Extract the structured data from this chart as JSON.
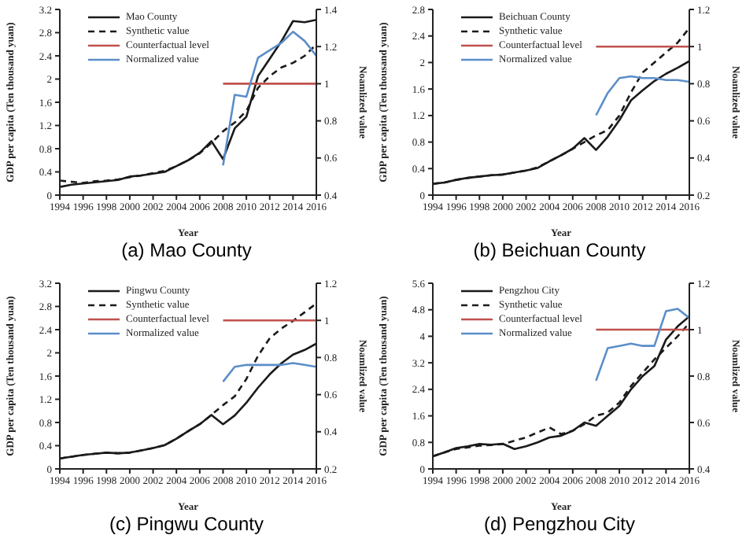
{
  "chart_data": [
    {
      "type": "line",
      "title": "(a) Mao County",
      "xlabel": "Year",
      "ylabel": "GDP per capita (Ten thousand yuan)",
      "y2label": "Noamlized value",
      "x": [
        1994,
        1995,
        1996,
        1997,
        1998,
        1999,
        2000,
        2001,
        2002,
        2003,
        2004,
        2005,
        2006,
        2007,
        2008,
        2009,
        2010,
        2011,
        2012,
        2013,
        2014,
        2015,
        2016
      ],
      "xlim": [
        1994,
        2016
      ],
      "xticks": [
        1994,
        1996,
        1998,
        2000,
        2002,
        2004,
        2006,
        2008,
        2010,
        2012,
        2014,
        2016
      ],
      "ylim": [
        0,
        3.2
      ],
      "yticks": [
        0,
        0.4,
        0.8,
        1.2,
        1.6,
        2,
        2.4,
        2.8,
        3.2
      ],
      "y2lim": [
        0.4,
        1.4
      ],
      "y2ticks": [
        0.4,
        0.6,
        0.8,
        1,
        1.2,
        1.4
      ],
      "legend": "top left",
      "marker": "none",
      "series": [
        {
          "name": "Mao County",
          "color": "#1a1a1a",
          "values": [
            0.14,
            0.18,
            0.2,
            0.22,
            0.24,
            0.26,
            0.32,
            0.34,
            0.37,
            0.4,
            0.5,
            0.6,
            0.73,
            0.93,
            0.62,
            1.15,
            1.35,
            2.05,
            2.35,
            2.65,
            3.0,
            2.98,
            3.02
          ]
        },
        {
          "name": "Synthetic value",
          "color": "#1a1a1a",
          "line_style": "dashed",
          "values": [
            0.25,
            0.23,
            0.21,
            0.24,
            0.25,
            0.27,
            0.31,
            0.34,
            0.38,
            0.42,
            0.5,
            0.6,
            0.72,
            0.9,
            1.1,
            1.25,
            1.45,
            1.85,
            2.05,
            2.2,
            2.28,
            2.4,
            2.6
          ]
        },
        {
          "name": "Counterfactual level",
          "color": "#c0504d",
          "axis": "y2",
          "x": [
            2008,
            2016
          ],
          "values": [
            1,
            1
          ]
        },
        {
          "name": "Normalized value",
          "color": "#5b8ec9",
          "axis": "y2",
          "x": [
            2008,
            2009,
            2010,
            2011,
            2012,
            2013,
            2014,
            2015,
            2016
          ],
          "values": [
            0.56,
            0.94,
            0.93,
            1.14,
            1.18,
            1.22,
            1.28,
            1.23,
            1.15
          ]
        }
      ]
    },
    {
      "type": "line",
      "title": "(b) Beichuan County",
      "xlabel": "Year",
      "ylabel": "GDP per capita (Ten thousand yuan)",
      "y2label": "Noamlized value",
      "x": [
        1994,
        1995,
        1996,
        1997,
        1998,
        1999,
        2000,
        2001,
        2002,
        2003,
        2004,
        2005,
        2006,
        2007,
        2008,
        2009,
        2010,
        2011,
        2012,
        2013,
        2014,
        2015,
        2016
      ],
      "xlim": [
        1994,
        2016
      ],
      "xticks": [
        1994,
        1996,
        1998,
        2000,
        2002,
        2004,
        2006,
        2008,
        2010,
        2012,
        2014,
        2016
      ],
      "ylim": [
        0,
        2.8
      ],
      "yticks": [
        0,
        0.4,
        0.8,
        1.2,
        1.6,
        2,
        2.4,
        2.8
      ],
      "y2lim": [
        0.2,
        1.2
      ],
      "y2ticks": [
        0.2,
        0.4,
        0.6,
        0.8,
        1,
        1.2
      ],
      "legend": "top left",
      "marker": "none",
      "series": [
        {
          "name": "Beichuan County",
          "color": "#1a1a1a",
          "values": [
            0.17,
            0.19,
            0.23,
            0.26,
            0.28,
            0.3,
            0.31,
            0.34,
            0.37,
            0.41,
            0.51,
            0.6,
            0.7,
            0.86,
            0.68,
            0.88,
            1.13,
            1.43,
            1.58,
            1.72,
            1.83,
            1.92,
            2.02
          ]
        },
        {
          "name": "Synthetic value",
          "color": "#1a1a1a",
          "line_style": "dashed",
          "values": [
            0.17,
            0.19,
            0.23,
            0.26,
            0.28,
            0.3,
            0.31,
            0.34,
            0.37,
            0.42,
            0.51,
            0.6,
            0.7,
            0.8,
            0.9,
            0.98,
            1.2,
            1.55,
            1.85,
            2.0,
            2.15,
            2.3,
            2.52
          ]
        },
        {
          "name": "Counterfactual level",
          "color": "#c0504d",
          "axis": "y2",
          "x": [
            2008,
            2016
          ],
          "values": [
            1,
            1
          ]
        },
        {
          "name": "Normalized value",
          "color": "#5b8ec9",
          "axis": "y2",
          "x": [
            2008,
            2009,
            2010,
            2011,
            2012,
            2013,
            2014,
            2015,
            2016
          ],
          "values": [
            0.63,
            0.75,
            0.83,
            0.84,
            0.83,
            0.83,
            0.82,
            0.82,
            0.81
          ]
        }
      ]
    },
    {
      "type": "line",
      "title": "(c) Pingwu County",
      "xlabel": "Year",
      "ylabel": "GDP per capita (Ten thousand yuan)",
      "y2label": "Noamlized value",
      "x": [
        1994,
        1995,
        1996,
        1997,
        1998,
        1999,
        2000,
        2001,
        2002,
        2003,
        2004,
        2005,
        2006,
        2007,
        2008,
        2009,
        2010,
        2011,
        2012,
        2013,
        2014,
        2015,
        2016
      ],
      "xlim": [
        1994,
        2016
      ],
      "xticks": [
        1994,
        1996,
        1998,
        2000,
        2002,
        2004,
        2006,
        2008,
        2010,
        2012,
        2014,
        2016
      ],
      "ylim": [
        0,
        3.2
      ],
      "yticks": [
        0,
        0.4,
        0.8,
        1.2,
        1.6,
        2,
        2.4,
        2.8,
        3.2
      ],
      "y2lim": [
        0.2,
        1.2
      ],
      "y2ticks": [
        0.2,
        0.4,
        0.6,
        0.8,
        1,
        1.2
      ],
      "legend": "top left",
      "marker": "none",
      "series": [
        {
          "name": "Pingwu County",
          "color": "#1a1a1a",
          "values": [
            0.18,
            0.21,
            0.24,
            0.26,
            0.28,
            0.27,
            0.28,
            0.32,
            0.36,
            0.41,
            0.52,
            0.65,
            0.77,
            0.93,
            0.77,
            0.92,
            1.14,
            1.4,
            1.63,
            1.82,
            1.97,
            2.05,
            2.16
          ]
        },
        {
          "name": "Synthetic value",
          "color": "#1a1a1a",
          "line_style": "dashed",
          "values": [
            0.18,
            0.21,
            0.24,
            0.26,
            0.28,
            0.27,
            0.28,
            0.32,
            0.36,
            0.41,
            0.52,
            0.65,
            0.77,
            0.93,
            1.1,
            1.25,
            1.55,
            1.95,
            2.25,
            2.42,
            2.55,
            2.7,
            2.85
          ]
        },
        {
          "name": "Counterfactual level",
          "color": "#c0504d",
          "axis": "y2",
          "x": [
            2008,
            2016
          ],
          "values": [
            1,
            1
          ]
        },
        {
          "name": "Normalized value",
          "color": "#5b8ec9",
          "axis": "y2",
          "x": [
            2008,
            2009,
            2010,
            2011,
            2012,
            2013,
            2014,
            2015,
            2016
          ],
          "values": [
            0.67,
            0.75,
            0.76,
            0.76,
            0.76,
            0.76,
            0.77,
            0.76,
            0.75
          ]
        }
      ]
    },
    {
      "type": "line",
      "title": "(d) Pengzhou City",
      "xlabel": "Year",
      "ylabel": "GDP per capita (Ten thousand yuan)",
      "y2label": "Noamlized value",
      "x": [
        1994,
        1995,
        1996,
        1997,
        1998,
        1999,
        2000,
        2001,
        2002,
        2003,
        2004,
        2005,
        2006,
        2007,
        2008,
        2009,
        2010,
        2011,
        2012,
        2013,
        2014,
        2015,
        2016
      ],
      "xlim": [
        1994,
        2016
      ],
      "xticks": [
        1994,
        1996,
        1998,
        2000,
        2002,
        2004,
        2006,
        2008,
        2010,
        2012,
        2014,
        2016
      ],
      "ylim": [
        0,
        5.6
      ],
      "yticks": [
        0,
        0.8,
        1.6,
        2.4,
        3.2,
        4,
        4.8,
        5.6
      ],
      "y2lim": [
        0.4,
        1.2
      ],
      "y2ticks": [
        0.4,
        0.6,
        0.8,
        1,
        1.2
      ],
      "legend": "top left",
      "marker": "none",
      "series": [
        {
          "name": "Pengzhou City",
          "color": "#1a1a1a",
          "values": [
            0.38,
            0.5,
            0.63,
            0.68,
            0.75,
            0.73,
            0.76,
            0.6,
            0.68,
            0.8,
            0.95,
            1.0,
            1.15,
            1.4,
            1.3,
            1.6,
            1.9,
            2.4,
            2.8,
            3.1,
            3.9,
            4.3,
            4.6
          ]
        },
        {
          "name": "Synthetic value",
          "color": "#1a1a1a",
          "line_style": "dashed",
          "values": [
            0.38,
            0.5,
            0.6,
            0.65,
            0.7,
            0.72,
            0.75,
            0.85,
            0.95,
            1.1,
            1.25,
            1.05,
            1.15,
            1.35,
            1.6,
            1.7,
            2.0,
            2.5,
            2.9,
            3.3,
            3.65,
            4.0,
            4.4
          ]
        },
        {
          "name": "Counterfactual level",
          "color": "#c0504d",
          "axis": "y2",
          "x": [
            2008,
            2016
          ],
          "values": [
            1,
            1
          ]
        },
        {
          "name": "Normalized value",
          "color": "#5b8ec9",
          "axis": "y2",
          "x": [
            2008,
            2009,
            2010,
            2011,
            2012,
            2013,
            2014,
            2015,
            2016
          ],
          "values": [
            0.78,
            0.92,
            0.93,
            0.94,
            0.93,
            0.93,
            1.08,
            1.09,
            1.05
          ]
        }
      ]
    }
  ]
}
